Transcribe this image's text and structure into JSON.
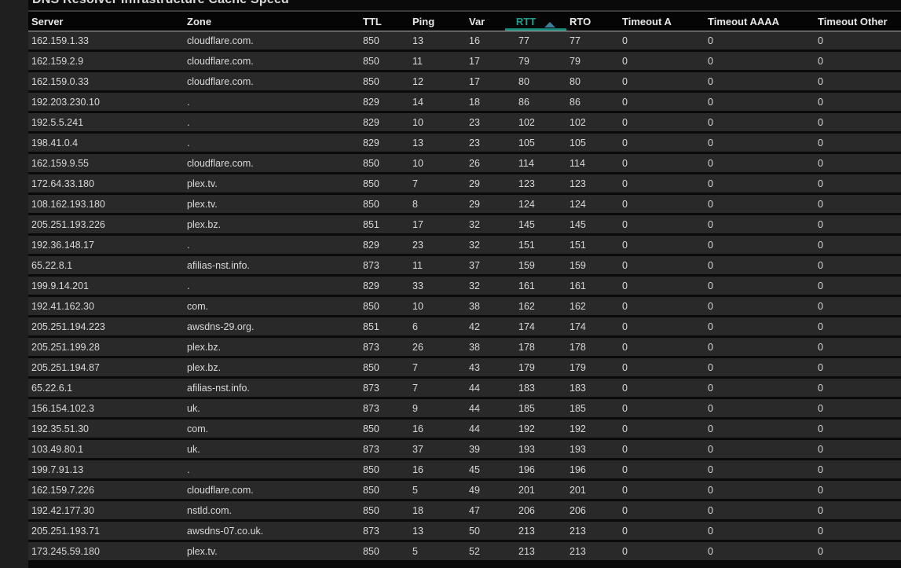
{
  "title": "DNS Resolver Infrastructure Cache Speed",
  "colors": {
    "page_background": "#1f1f1f",
    "panel_background": "#0a0a0a",
    "row_background": "#292929",
    "body_text": "#d8d9da",
    "header_text": "#e8e8e8",
    "sorted_column_accent": "#1f9e8e",
    "sorted_underline": "#178779",
    "sort_arrow": "#3a7f9e",
    "header_divider": "#b5b5b5"
  },
  "table": {
    "sort": {
      "column": "RTT",
      "direction": "asc",
      "icon": "caret-up-icon"
    },
    "columns": [
      {
        "label": "Server"
      },
      {
        "label": "Zone"
      },
      {
        "label": "TTL"
      },
      {
        "label": "Ping"
      },
      {
        "label": "Var"
      },
      {
        "label": "RTT"
      },
      {
        "label": "RTO"
      },
      {
        "label": "Timeout A"
      },
      {
        "label": "Timeout AAAA"
      },
      {
        "label": "Timeout Other"
      }
    ],
    "rows": [
      [
        "162.159.1.33",
        "cloudflare.com.",
        "850",
        "13",
        "16",
        "77",
        "77",
        "0",
        "0",
        "0"
      ],
      [
        "162.159.2.9",
        "cloudflare.com.",
        "850",
        "11",
        "17",
        "79",
        "79",
        "0",
        "0",
        "0"
      ],
      [
        "162.159.0.33",
        "cloudflare.com.",
        "850",
        "12",
        "17",
        "80",
        "80",
        "0",
        "0",
        "0"
      ],
      [
        "192.203.230.10",
        ".",
        "829",
        "14",
        "18",
        "86",
        "86",
        "0",
        "0",
        "0"
      ],
      [
        "192.5.5.241",
        ".",
        "829",
        "10",
        "23",
        "102",
        "102",
        "0",
        "0",
        "0"
      ],
      [
        "198.41.0.4",
        ".",
        "829",
        "13",
        "23",
        "105",
        "105",
        "0",
        "0",
        "0"
      ],
      [
        "162.159.9.55",
        "cloudflare.com.",
        "850",
        "10",
        "26",
        "114",
        "114",
        "0",
        "0",
        "0"
      ],
      [
        "172.64.33.180",
        "plex.tv.",
        "850",
        "7",
        "29",
        "123",
        "123",
        "0",
        "0",
        "0"
      ],
      [
        "108.162.193.180",
        "plex.tv.",
        "850",
        "8",
        "29",
        "124",
        "124",
        "0",
        "0",
        "0"
      ],
      [
        "205.251.193.226",
        "plex.bz.",
        "851",
        "17",
        "32",
        "145",
        "145",
        "0",
        "0",
        "0"
      ],
      [
        "192.36.148.17",
        ".",
        "829",
        "23",
        "32",
        "151",
        "151",
        "0",
        "0",
        "0"
      ],
      [
        "65.22.8.1",
        "afilias-nst.info.",
        "873",
        "11",
        "37",
        "159",
        "159",
        "0",
        "0",
        "0"
      ],
      [
        "199.9.14.201",
        ".",
        "829",
        "33",
        "32",
        "161",
        "161",
        "0",
        "0",
        "0"
      ],
      [
        "192.41.162.30",
        "com.",
        "850",
        "10",
        "38",
        "162",
        "162",
        "0",
        "0",
        "0"
      ],
      [
        "205.251.194.223",
        "awsdns-29.org.",
        "851",
        "6",
        "42",
        "174",
        "174",
        "0",
        "0",
        "0"
      ],
      [
        "205.251.199.28",
        "plex.bz.",
        "873",
        "26",
        "38",
        "178",
        "178",
        "0",
        "0",
        "0"
      ],
      [
        "205.251.194.87",
        "plex.bz.",
        "850",
        "7",
        "43",
        "179",
        "179",
        "0",
        "0",
        "0"
      ],
      [
        "65.22.6.1",
        "afilias-nst.info.",
        "873",
        "7",
        "44",
        "183",
        "183",
        "0",
        "0",
        "0"
      ],
      [
        "156.154.102.3",
        "uk.",
        "873",
        "9",
        "44",
        "185",
        "185",
        "0",
        "0",
        "0"
      ],
      [
        "192.35.51.30",
        "com.",
        "850",
        "16",
        "44",
        "192",
        "192",
        "0",
        "0",
        "0"
      ],
      [
        "103.49.80.1",
        "uk.",
        "873",
        "37",
        "39",
        "193",
        "193",
        "0",
        "0",
        "0"
      ],
      [
        "199.7.91.13",
        ".",
        "850",
        "16",
        "45",
        "196",
        "196",
        "0",
        "0",
        "0"
      ],
      [
        "162.159.7.226",
        "cloudflare.com.",
        "850",
        "5",
        "49",
        "201",
        "201",
        "0",
        "0",
        "0"
      ],
      [
        "192.42.177.30",
        "nstld.com.",
        "850",
        "18",
        "47",
        "206",
        "206",
        "0",
        "0",
        "0"
      ],
      [
        "205.251.193.71",
        "awsdns-07.co.uk.",
        "873",
        "13",
        "50",
        "213",
        "213",
        "0",
        "0",
        "0"
      ],
      [
        "173.245.59.180",
        "plex.tv.",
        "850",
        "5",
        "52",
        "213",
        "213",
        "0",
        "0",
        "0"
      ]
    ]
  }
}
